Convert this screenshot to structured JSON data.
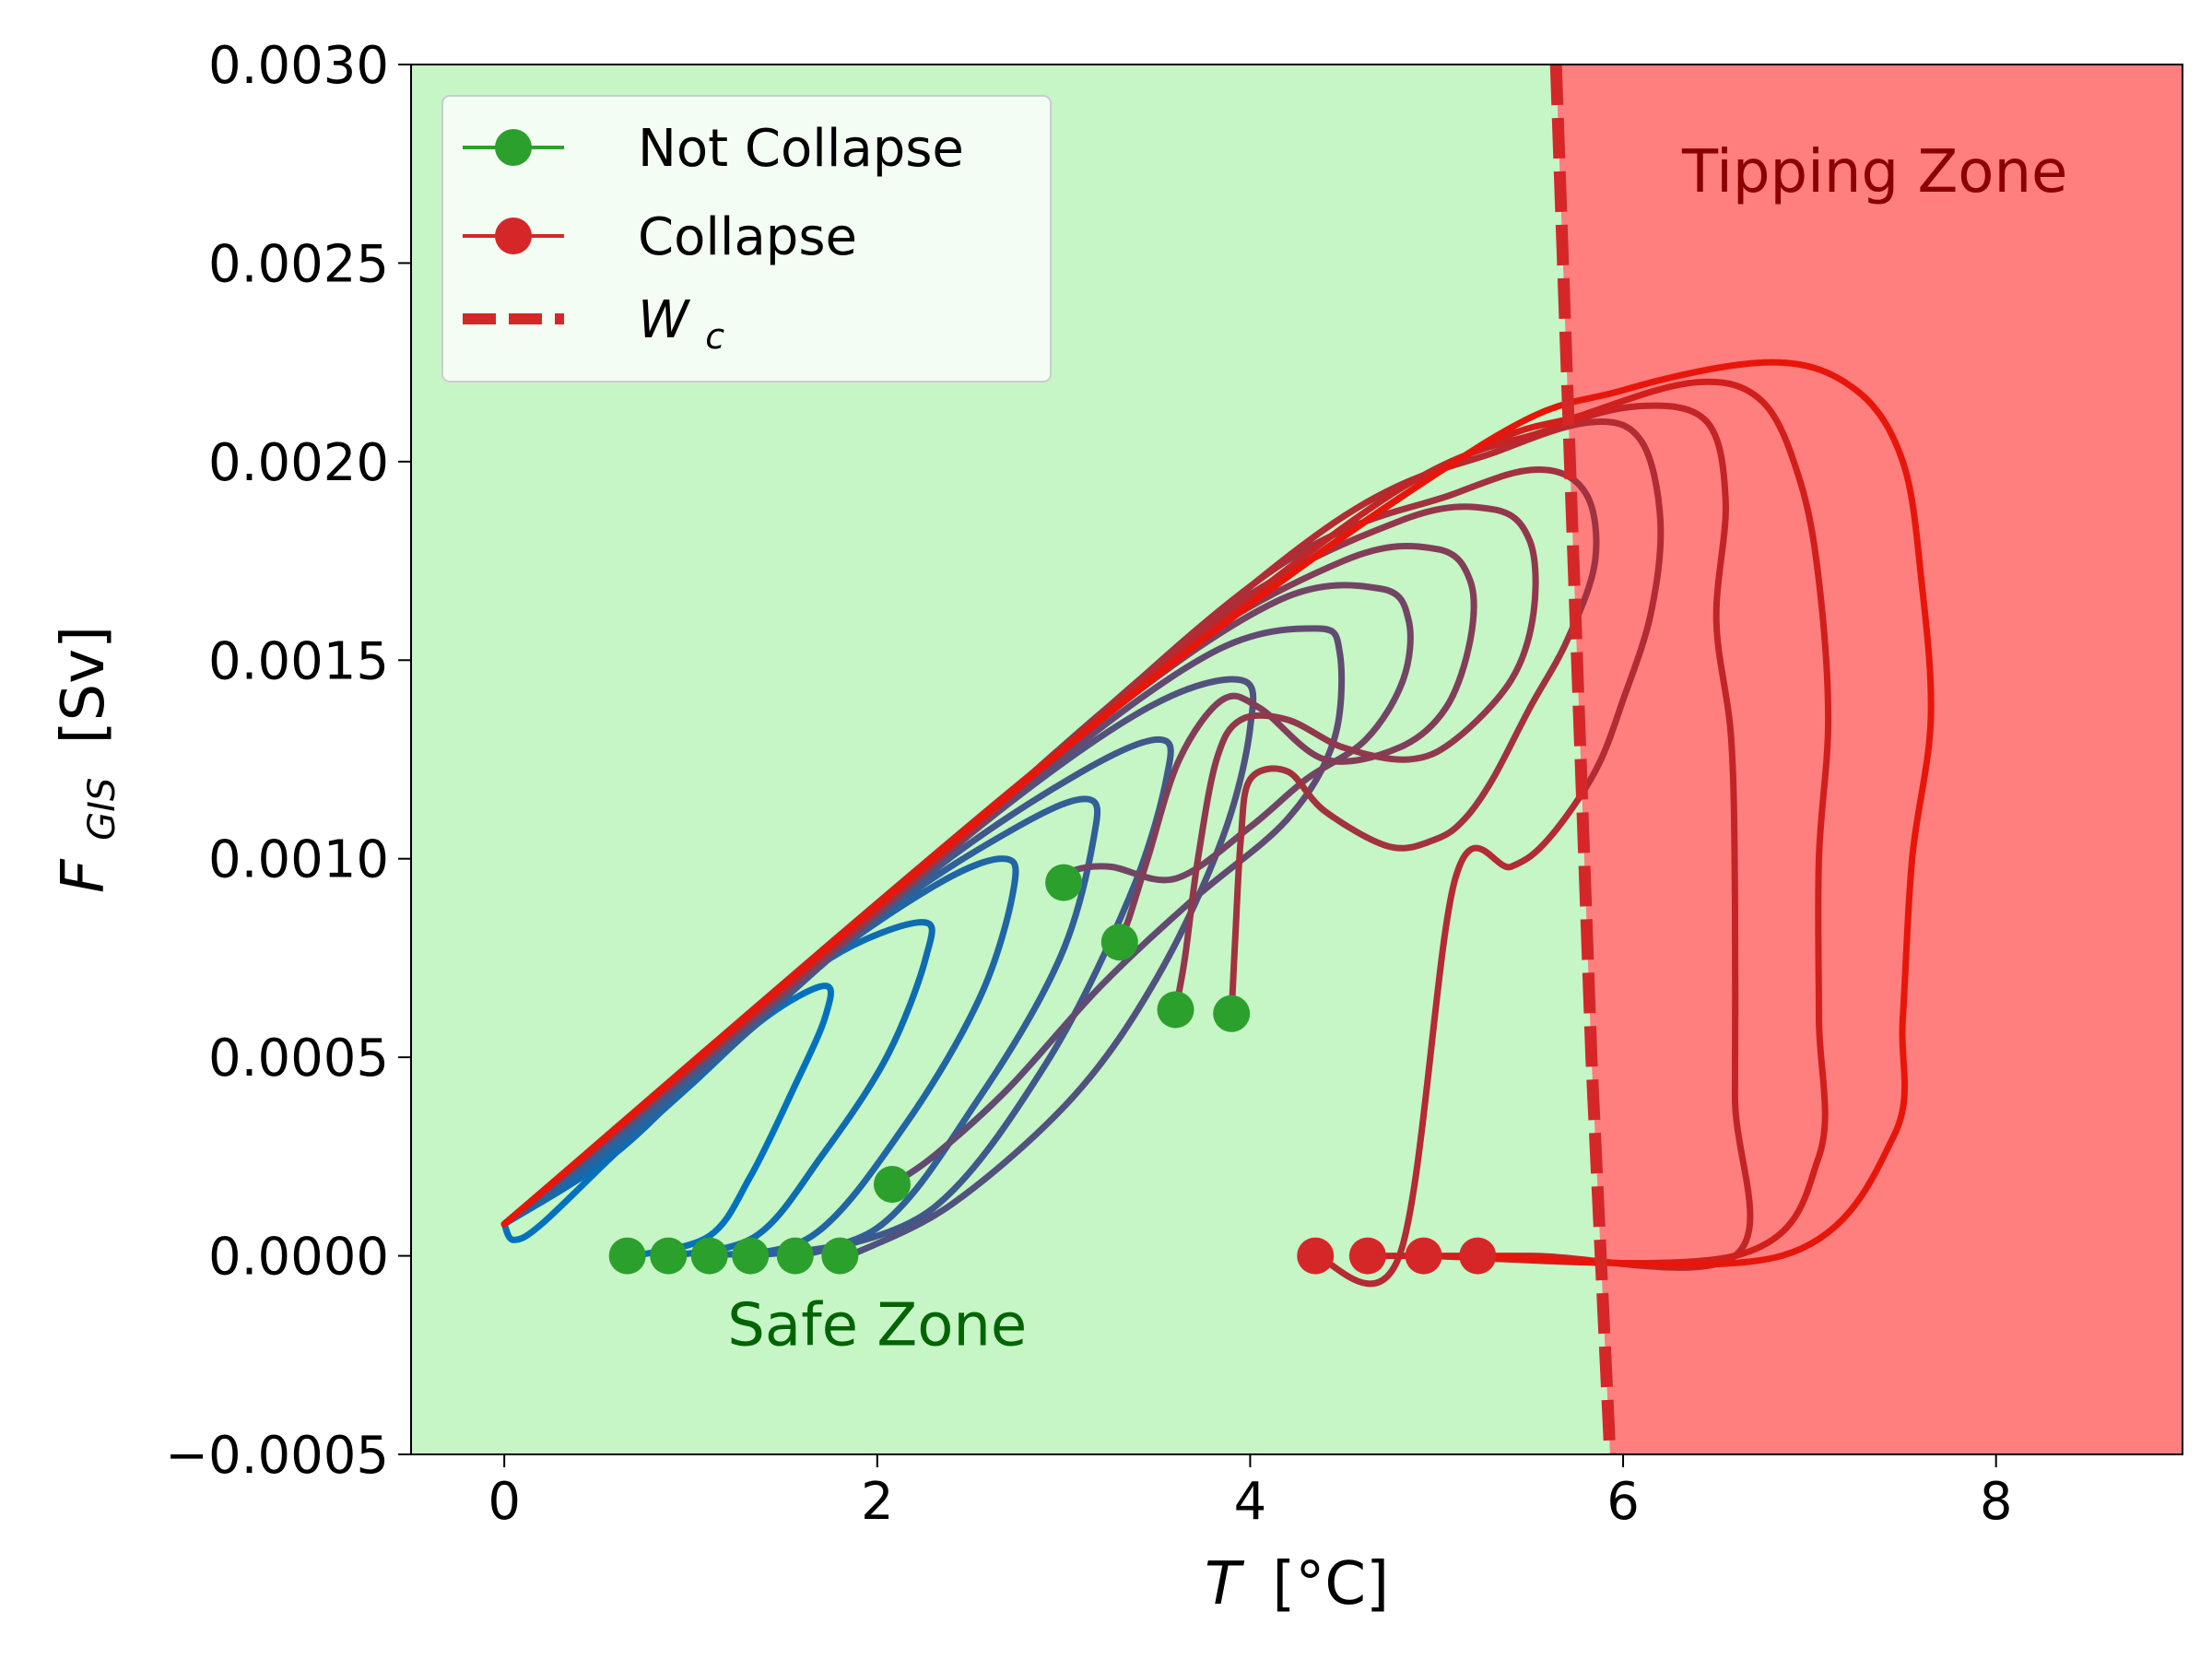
{
  "chart_data": {
    "type": "line",
    "title": "",
    "xlabel_base": "T",
    "xlabel_unit": "[°C]",
    "ylabel_base": "F",
    "ylabel_sub": "GIS",
    "ylabel_unit": "[Sv]",
    "xlim": [
      -0.5,
      9.0
    ],
    "ylim": [
      -0.0005,
      0.003
    ],
    "xticks": [
      0,
      2,
      4,
      6,
      8
    ],
    "xtick_labels": [
      "0",
      "2",
      "4",
      "6",
      "8"
    ],
    "yticks": [
      -0.0005,
      0.0,
      0.0005,
      0.001,
      0.0015,
      0.002,
      0.0025,
      0.003
    ],
    "ytick_labels": [
      "−0.0005",
      "0.0000",
      "0.0005",
      "0.0010",
      "0.0015",
      "0.0020",
      "0.0025",
      "0.0030"
    ],
    "grid": false,
    "colors": {
      "safe_fill": "#c6f5c6",
      "tip_fill": "#ff7f7f",
      "not_collapse": "#2ca02c",
      "collapse": "#d62728",
      "wc_line": "#d62728",
      "cool_line": "#0072bd",
      "hot_line": "#e8160a",
      "safe_text": "#006400",
      "tip_text": "#8b0000"
    },
    "zones": {
      "safe_label": "Safe Zone",
      "tip_label": "Tipping Zone",
      "boundary_Wc": [
        [
          5.64,
          0.003
        ],
        [
          5.73,
          0.0018
        ],
        [
          5.83,
          0.0005
        ],
        [
          5.93,
          -0.0005
        ]
      ]
    },
    "legend": {
      "position": "upper-left",
      "entries": [
        {
          "label": "Not Collapse",
          "style": "marker-line",
          "color": "#2ca02c"
        },
        {
          "label": "Collapse",
          "style": "marker-line",
          "color": "#d62728"
        },
        {
          "label_base": "W",
          "label_sub": "c",
          "style": "dashed",
          "color": "#d62728"
        }
      ]
    },
    "endpoints": {
      "not_collapse": [
        [
          0.66,
          0.0
        ],
        [
          0.88,
          0.0
        ],
        [
          1.1,
          0.0
        ],
        [
          1.32,
          0.0
        ],
        [
          1.56,
          0.0
        ],
        [
          1.8,
          0.0
        ],
        [
          2.08,
          0.00018
        ],
        [
          3.0,
          0.00094
        ],
        [
          3.3,
          0.00079
        ],
        [
          3.6,
          0.00062
        ],
        [
          3.9,
          0.00061
        ]
      ],
      "collapse": [
        [
          4.35,
          0.0
        ],
        [
          4.63,
          0.0
        ],
        [
          4.93,
          0.0
        ],
        [
          5.22,
          0.0
        ]
      ]
    },
    "series": [
      {
        "t": 0.0,
        "points": [
          [
            0.0,
            8e-05
          ],
          [
            0.05,
            4e-05
          ],
          [
            0.2,
            8e-05
          ],
          [
            0.6,
            0.00026
          ],
          [
            1.0,
            0.00043
          ],
          [
            1.4,
            0.0006
          ],
          [
            1.72,
            0.00068
          ],
          [
            1.72,
            0.0006
          ],
          [
            1.55,
            0.00042
          ],
          [
            1.32,
            0.0002
          ],
          [
            1.1,
            5e-05
          ],
          [
            0.7,
            0.0
          ]
        ]
      },
      {
        "t": 0.07,
        "points": [
          [
            0.0,
            8e-05
          ],
          [
            0.6,
            0.00026
          ],
          [
            1.2,
            0.00053
          ],
          [
            1.75,
            0.00075
          ],
          [
            2.24,
            0.00084
          ],
          [
            2.26,
            0.00075
          ],
          [
            2.05,
            0.0005
          ],
          [
            1.7,
            0.00025
          ],
          [
            1.35,
            5e-05
          ],
          [
            0.9,
            0.0
          ]
        ]
      },
      {
        "t": 0.14,
        "points": [
          [
            0.0,
            8e-05
          ],
          [
            0.8,
            0.00035
          ],
          [
            1.6,
            0.0007
          ],
          [
            2.3,
            0.00093
          ],
          [
            2.68,
            0.001
          ],
          [
            2.73,
            0.00092
          ],
          [
            2.55,
            0.00065
          ],
          [
            2.15,
            0.00033
          ],
          [
            1.65,
            5e-05
          ],
          [
            1.1,
            0.0
          ]
        ]
      },
      {
        "t": 0.21,
        "points": [
          [
            0.0,
            8e-05
          ],
          [
            1.0,
            0.00044
          ],
          [
            2.0,
            0.00085
          ],
          [
            2.75,
            0.00108
          ],
          [
            3.13,
            0.00115
          ],
          [
            3.16,
            0.00105
          ],
          [
            2.98,
            0.00075
          ],
          [
            2.55,
            0.0004
          ],
          [
            2.0,
            7e-05
          ],
          [
            1.35,
            0.0
          ]
        ]
      },
      {
        "t": 0.28,
        "points": [
          [
            0.0,
            8e-05
          ],
          [
            1.2,
            0.00053
          ],
          [
            2.3,
            0.00097
          ],
          [
            3.1,
            0.00122
          ],
          [
            3.52,
            0.0013
          ],
          [
            3.55,
            0.0012
          ],
          [
            3.35,
            0.0009
          ],
          [
            2.9,
            0.00048
          ],
          [
            2.3,
            0.00012
          ],
          [
            1.6,
            0.0
          ]
        ]
      },
      {
        "t": 0.35,
        "points": [
          [
            0.0,
            8e-05
          ],
          [
            1.4,
            0.00062
          ],
          [
            2.6,
            0.0011
          ],
          [
            3.45,
            0.00138
          ],
          [
            3.95,
            0.00145
          ],
          [
            4.0,
            0.00133
          ],
          [
            3.85,
            0.00105
          ],
          [
            3.5,
            0.0007
          ],
          [
            3.05,
            0.0004
          ],
          [
            2.4,
            0.00013
          ],
          [
            1.85,
            0.0
          ]
        ]
      },
      {
        "t": 0.42,
        "points": [
          [
            0.0,
            8e-05
          ],
          [
            1.6,
            0.0007
          ],
          [
            2.9,
            0.00122
          ],
          [
            3.8,
            0.00152
          ],
          [
            4.35,
            0.00158
          ],
          [
            4.48,
            0.00152
          ],
          [
            4.45,
            0.0013
          ],
          [
            4.2,
            0.0011
          ],
          [
            3.7,
            0.0009
          ],
          [
            3.2,
            0.00068
          ],
          [
            2.7,
            0.00042
          ],
          [
            2.3,
            0.00025
          ],
          [
            2.08,
            0.00018
          ]
        ]
      },
      {
        "t": 0.49,
        "points": [
          [
            0.0,
            8e-05
          ],
          [
            1.8,
            0.00078
          ],
          [
            3.2,
            0.00135
          ],
          [
            4.15,
            0.00165
          ],
          [
            4.7,
            0.00168
          ],
          [
            4.85,
            0.0016
          ],
          [
            4.82,
            0.00145
          ],
          [
            4.62,
            0.0013
          ],
          [
            4.3,
            0.0012
          ],
          [
            4.0,
            0.00108
          ],
          [
            3.6,
            0.00095
          ],
          [
            3.25,
            0.00098
          ],
          [
            3.05,
            0.00097
          ],
          [
            3.0,
            0.00094
          ]
        ]
      },
      {
        "t": 0.56,
        "points": [
          [
            0.0,
            8e-05
          ],
          [
            2.0,
            0.00087
          ],
          [
            3.5,
            0.00148
          ],
          [
            4.5,
            0.00175
          ],
          [
            5.0,
            0.00178
          ],
          [
            5.18,
            0.0017
          ],
          [
            5.18,
            0.00155
          ],
          [
            5.05,
            0.00138
          ],
          [
            4.8,
            0.00128
          ],
          [
            4.4,
            0.00125
          ],
          [
            4.05,
            0.00138
          ],
          [
            3.85,
            0.0014
          ],
          [
            3.62,
            0.00125
          ],
          [
            3.45,
            0.001
          ],
          [
            3.35,
            0.00085
          ],
          [
            3.3,
            0.00079
          ]
        ]
      },
      {
        "t": 0.63,
        "points": [
          [
            0.0,
            8e-05
          ],
          [
            2.2,
            0.00095
          ],
          [
            3.8,
            0.0016
          ],
          [
            4.8,
            0.00185
          ],
          [
            5.3,
            0.00188
          ],
          [
            5.5,
            0.0018
          ],
          [
            5.52,
            0.00162
          ],
          [
            5.4,
            0.00145
          ],
          [
            5.1,
            0.0013
          ],
          [
            4.85,
            0.00125
          ],
          [
            4.5,
            0.00128
          ],
          [
            4.2,
            0.00135
          ],
          [
            3.95,
            0.00135
          ],
          [
            3.82,
            0.00125
          ],
          [
            3.72,
            0.001
          ],
          [
            3.65,
            0.00075
          ],
          [
            3.6,
            0.00062
          ]
        ]
      },
      {
        "t": 0.7,
        "points": [
          [
            0.0,
            8e-05
          ],
          [
            2.4,
            0.00103
          ],
          [
            4.1,
            0.00172
          ],
          [
            5.1,
            0.00192
          ],
          [
            5.55,
            0.00198
          ],
          [
            5.8,
            0.00192
          ],
          [
            5.85,
            0.00175
          ],
          [
            5.7,
            0.00155
          ],
          [
            5.5,
            0.00138
          ],
          [
            5.3,
            0.0012
          ],
          [
            5.15,
            0.0011
          ],
          [
            5.0,
            0.00105
          ],
          [
            4.75,
            0.00103
          ],
          [
            4.4,
            0.00112
          ],
          [
            4.2,
            0.00122
          ],
          [
            4.0,
            0.0012
          ],
          [
            3.95,
            0.00105
          ],
          [
            3.92,
            0.0008
          ],
          [
            3.9,
            0.00061
          ]
        ]
      },
      {
        "t": 0.77,
        "points": [
          [
            0.0,
            8e-05
          ],
          [
            2.6,
            0.00112
          ],
          [
            4.4,
            0.00183
          ],
          [
            5.35,
            0.00203
          ],
          [
            5.85,
            0.0021
          ],
          [
            6.1,
            0.00205
          ],
          [
            6.2,
            0.00185
          ],
          [
            6.15,
            0.00162
          ],
          [
            6.0,
            0.0014
          ],
          [
            5.85,
            0.00122
          ],
          [
            5.6,
            0.00105
          ],
          [
            5.4,
            0.00098
          ],
          [
            5.1,
            0.00095
          ],
          [
            4.8,
            0.0
          ],
          [
            4.35,
            0.0
          ]
        ]
      },
      {
        "t": 0.84,
        "points": [
          [
            0.0,
            8e-05
          ],
          [
            2.8,
            0.0012
          ],
          [
            4.7,
            0.0019
          ],
          [
            5.6,
            0.00208
          ],
          [
            6.1,
            0.00214
          ],
          [
            6.45,
            0.0021
          ],
          [
            6.55,
            0.0019
          ],
          [
            6.5,
            0.0016
          ],
          [
            6.58,
            0.0013
          ],
          [
            6.6,
            0.0009
          ],
          [
            6.6,
            0.0004
          ],
          [
            6.6,
            0.0
          ],
          [
            5.5,
            0.0
          ],
          [
            4.63,
            0.0
          ]
        ]
      },
      {
        "t": 0.9,
        "points": [
          [
            0.0,
            8e-05
          ],
          [
            3.0,
            0.00128
          ],
          [
            5.0,
            0.00197
          ],
          [
            5.8,
            0.00212
          ],
          [
            6.4,
            0.0022
          ],
          [
            6.75,
            0.00215
          ],
          [
            6.95,
            0.00195
          ],
          [
            7.05,
            0.0017
          ],
          [
            7.1,
            0.00135
          ],
          [
            7.05,
            0.001
          ],
          [
            7.05,
            0.0006
          ],
          [
            7.05,
            0.00025
          ],
          [
            6.6,
            0.0
          ],
          [
            4.93,
            0.0
          ]
        ]
      },
      {
        "t": 1.0,
        "points": [
          [
            0.0,
            8e-05
          ],
          [
            3.2,
            0.00135
          ],
          [
            5.2,
            0.00203
          ],
          [
            6.0,
            0.00218
          ],
          [
            6.8,
            0.00225
          ],
          [
            7.25,
            0.00218
          ],
          [
            7.5,
            0.002
          ],
          [
            7.6,
            0.0017
          ],
          [
            7.65,
            0.00135
          ],
          [
            7.55,
            0.001
          ],
          [
            7.5,
            0.0006
          ],
          [
            7.45,
            0.0003
          ],
          [
            6.85,
            0.0
          ],
          [
            5.22,
            0.0
          ]
        ]
      }
    ]
  }
}
